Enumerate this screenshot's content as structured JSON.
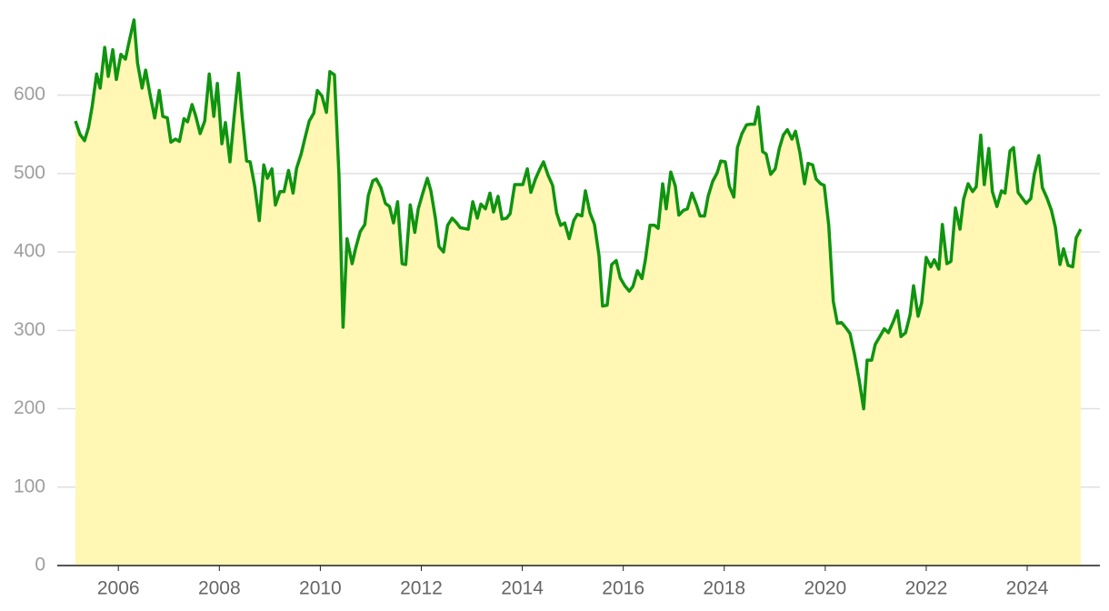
{
  "chart_data": {
    "type": "area",
    "x": [
      2005.15,
      2005.24,
      2005.33,
      2005.41,
      2005.48,
      2005.57,
      2005.64,
      2005.73,
      2005.8,
      2005.89,
      2005.96,
      2006.05,
      2006.14,
      2006.22,
      2006.31,
      2006.38,
      2006.47,
      2006.54,
      2006.63,
      2006.72,
      2006.81,
      2006.88,
      2006.97,
      2007.04,
      2007.13,
      2007.21,
      2007.3,
      2007.37,
      2007.46,
      2007.53,
      2007.62,
      2007.71,
      2007.8,
      2007.89,
      2007.96,
      2008.05,
      2008.12,
      2008.21,
      2008.29,
      2008.38,
      2008.45,
      2008.54,
      2008.61,
      2008.7,
      2008.79,
      2008.88,
      2008.95,
      2009.04,
      2009.11,
      2009.2,
      2009.28,
      2009.37,
      2009.46,
      2009.53,
      2009.62,
      2009.69,
      2009.78,
      2009.87,
      2009.94,
      2010.03,
      2010.12,
      2010.19,
      2010.28,
      2010.37,
      2010.45,
      2010.53,
      2010.63,
      2010.7,
      2010.79,
      2010.88,
      2010.95,
      2011.04,
      2011.11,
      2011.2,
      2011.29,
      2011.37,
      2011.45,
      2011.53,
      2011.62,
      2011.69,
      2011.78,
      2011.87,
      2011.94,
      2012.03,
      2012.12,
      2012.19,
      2012.28,
      2012.35,
      2012.44,
      2012.52,
      2012.61,
      2012.7,
      2012.77,
      2012.93,
      2013.02,
      2013.11,
      2013.18,
      2013.27,
      2013.36,
      2013.43,
      2013.52,
      2013.6,
      2013.69,
      2013.76,
      2013.85,
      2014.01,
      2014.1,
      2014.17,
      2014.26,
      2014.35,
      2014.42,
      2014.51,
      2014.6,
      2014.68,
      2014.76,
      2014.84,
      2014.93,
      2015.02,
      2015.09,
      2015.18,
      2015.25,
      2015.34,
      2015.43,
      2015.52,
      2015.59,
      2015.68,
      2015.77,
      2015.86,
      2015.94,
      2016.03,
      2016.12,
      2016.19,
      2016.28,
      2016.37,
      2016.44,
      2016.53,
      2016.62,
      2016.69,
      2016.78,
      2016.85,
      2016.94,
      2017.03,
      2017.1,
      2017.19,
      2017.27,
      2017.36,
      2017.45,
      2017.52,
      2017.61,
      2017.68,
      2017.77,
      2017.86,
      2017.93,
      2018.02,
      2018.1,
      2018.19,
      2018.26,
      2018.35,
      2018.44,
      2018.51,
      2018.6,
      2018.67,
      2018.76,
      2018.83,
      2018.92,
      2019.01,
      2019.09,
      2019.17,
      2019.25,
      2019.34,
      2019.41,
      2019.5,
      2019.59,
      2019.66,
      2019.75,
      2019.82,
      2019.91,
      2019.98,
      2020.07,
      2020.16,
      2020.24,
      2020.32,
      2020.4,
      2020.49,
      2020.58,
      2020.67,
      2020.76,
      2020.83,
      2020.92,
      2020.99,
      2021.08,
      2021.17,
      2021.25,
      2021.34,
      2021.43,
      2021.5,
      2021.59,
      2021.68,
      2021.75,
      2021.84,
      2021.91,
      2022.0,
      2022.09,
      2022.16,
      2022.25,
      2022.32,
      2022.41,
      2022.49,
      2022.58,
      2022.67,
      2022.74,
      2022.83,
      2022.92,
      2022.99,
      2023.08,
      2023.15,
      2023.24,
      2023.31,
      2023.4,
      2023.49,
      2023.56,
      2023.66,
      2023.73,
      2023.82,
      2023.91,
      2023.98,
      2024.07,
      2024.14,
      2024.23,
      2024.3,
      2024.39,
      2024.48,
      2024.56,
      2024.65,
      2024.72,
      2024.81,
      2024.9,
      2024.97,
      2025.06
    ],
    "values": [
      567,
      550,
      542,
      559,
      585,
      627,
      609,
      661,
      624,
      658,
      620,
      652,
      646,
      670,
      696,
      641,
      609,
      632,
      600,
      571,
      606,
      573,
      571,
      540,
      544,
      541,
      570,
      566,
      588,
      574,
      551,
      567,
      627,
      573,
      615,
      538,
      565,
      515,
      571,
      628,
      574,
      516,
      515,
      484,
      440,
      511,
      494,
      506,
      460,
      477,
      477,
      504,
      475,
      507,
      525,
      544,
      567,
      577,
      606,
      599,
      578,
      630,
      626,
      498,
      304,
      417,
      385,
      405,
      426,
      435,
      472,
      491,
      493,
      482,
      462,
      458,
      437,
      464,
      385,
      384,
      460,
      425,
      455,
      475,
      494,
      478,
      443,
      407,
      400,
      434,
      443,
      437,
      431,
      429,
      464,
      443,
      461,
      455,
      475,
      451,
      471,
      442,
      443,
      449,
      486,
      486,
      506,
      476,
      493,
      506,
      515,
      498,
      485,
      450,
      434,
      437,
      417,
      440,
      448,
      446,
      478,
      450,
      435,
      395,
      331,
      332,
      384,
      389,
      367,
      357,
      350,
      356,
      376,
      366,
      391,
      434,
      434,
      430,
      487,
      455,
      502,
      484,
      447,
      453,
      455,
      475,
      460,
      446,
      446,
      471,
      490,
      501,
      516,
      515,
      484,
      470,
      533,
      551,
      562,
      563,
      563,
      585,
      528,
      525,
      499,
      506,
      532,
      549,
      556,
      544,
      554,
      526,
      487,
      513,
      511,
      493,
      487,
      485,
      434,
      337,
      309,
      310,
      304,
      296,
      269,
      237,
      200,
      262,
      262,
      282,
      292,
      302,
      297,
      310,
      325,
      292,
      297,
      320,
      357,
      318,
      335,
      393,
      381,
      390,
      378,
      435,
      385,
      388,
      456,
      429,
      467,
      487,
      477,
      483,
      549,
      486,
      532,
      477,
      458,
      478,
      475,
      529,
      533,
      476,
      468,
      462,
      468,
      499,
      523,
      482,
      469,
      453,
      431,
      384,
      404,
      383,
      381,
      418,
      429
    ],
    "color": "#0f9410",
    "fill": "#fff7b3",
    "xlim": [
      2004.79,
      2025.44
    ],
    "xticks": [
      2006,
      2008,
      2010,
      2012,
      2014,
      2016,
      2018,
      2020,
      2022,
      2024
    ],
    "ylim": [
      0,
      704
    ],
    "yticks": [
      0,
      100,
      200,
      300,
      400,
      500,
      600
    ],
    "grid": true
  }
}
